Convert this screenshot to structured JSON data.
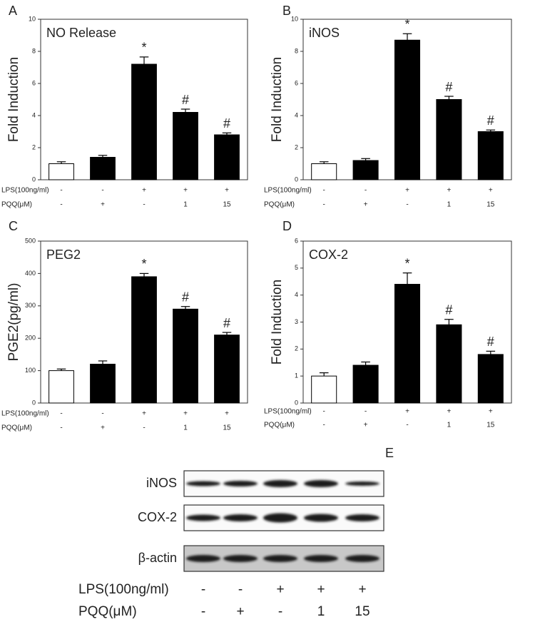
{
  "chart_data": [
    {
      "type": "bar",
      "panel": "A",
      "title": "NO Release",
      "y_label": "Fold Induction",
      "values": [
        1,
        1.4,
        7.2,
        4.2,
        2.8
      ],
      "errors": [
        0.12,
        0.12,
        0.45,
        0.2,
        0.12
      ],
      "annotations": [
        null,
        null,
        "*",
        "#",
        "#"
      ],
      "colors": [
        "#ffffff",
        "#000000",
        "#000000",
        "#000000",
        "#000000"
      ],
      "ylim": [
        0,
        10
      ],
      "yticks": [
        0,
        2,
        4,
        6,
        8,
        10
      ],
      "conditions": [
        {
          "name": "LPS(100ng/ml)",
          "labels": [
            "-",
            "-",
            "+",
            "+",
            "+"
          ]
        },
        {
          "name": "PQQ(μM)",
          "labels": [
            "-",
            "+",
            "-",
            "1",
            "15"
          ]
        }
      ]
    },
    {
      "type": "bar",
      "panel": "B",
      "title": "iNOS",
      "y_label": "Fold Induction",
      "values": [
        1,
        1.2,
        8.7,
        5.0,
        3.0
      ],
      "errors": [
        0.12,
        0.12,
        0.4,
        0.2,
        0.1
      ],
      "annotations": [
        null,
        null,
        "*",
        "#",
        "#"
      ],
      "colors": [
        "#ffffff",
        "#000000",
        "#000000",
        "#000000",
        "#000000"
      ],
      "ylim": [
        0,
        10
      ],
      "yticks": [
        0,
        2,
        4,
        6,
        8,
        10
      ],
      "conditions": [
        {
          "name": "LPS(100ng/ml)",
          "labels": [
            "-",
            "-",
            "+",
            "+",
            "+"
          ]
        },
        {
          "name": "PQQ(μM)",
          "labels": [
            "-",
            "+",
            "-",
            "1",
            "15"
          ]
        }
      ]
    },
    {
      "type": "bar",
      "panel": "C",
      "title": "PEG2",
      "y_label": "PGE2(pg/ml)",
      "values": [
        100,
        120,
        390,
        290,
        210
      ],
      "errors": [
        5,
        10,
        10,
        8,
        8
      ],
      "annotations": [
        null,
        null,
        "*",
        "#",
        "#"
      ],
      "colors": [
        "#ffffff",
        "#000000",
        "#000000",
        "#000000",
        "#000000"
      ],
      "ylim": [
        0,
        500
      ],
      "yticks": [
        0,
        100,
        200,
        300,
        400,
        500
      ],
      "conditions": [
        {
          "name": "LPS(100ng/ml)",
          "labels": [
            "-",
            "-",
            "+",
            "+",
            "+"
          ]
        },
        {
          "name": "PQQ(μM)",
          "labels": [
            "-",
            "+",
            "-",
            "1",
            "15"
          ]
        }
      ]
    },
    {
      "type": "bar",
      "panel": "D",
      "title": "COX-2",
      "y_label": "Fold Induction",
      "values": [
        1,
        1.4,
        4.4,
        2.9,
        1.8
      ],
      "errors": [
        0.12,
        0.12,
        0.42,
        0.2,
        0.12
      ],
      "annotations": [
        null,
        null,
        "*",
        "#",
        "#"
      ],
      "colors": [
        "#ffffff",
        "#000000",
        "#000000",
        "#000000",
        "#000000"
      ],
      "ylim": [
        0,
        6
      ],
      "yticks": [
        0,
        1,
        2,
        3,
        4,
        5,
        6
      ],
      "conditions": [
        {
          "name": "LPS(100ng/ml)",
          "labels": [
            "-",
            "-",
            "+",
            "+",
            "+"
          ]
        },
        {
          "name": "PQQ(μM)",
          "labels": [
            "-",
            "+",
            "-",
            "1",
            "15"
          ]
        }
      ]
    }
  ],
  "blot": {
    "panel": "E",
    "rows": [
      "iNOS",
      "COX-2",
      "β-actin"
    ],
    "conditions": [
      {
        "name": "LPS(100ng/ml)",
        "labels": [
          "-",
          "-",
          "+",
          "+",
          "+"
        ]
      },
      {
        "name": "PQQ(μM)",
        "labels": [
          "-",
          "+",
          "-",
          "1",
          "15"
        ]
      }
    ]
  }
}
